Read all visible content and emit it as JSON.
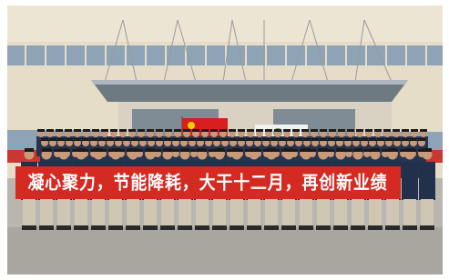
{
  "banner": {
    "text": "凝心聚力，节能降耗，大干十二月，再创新业绩"
  }
}
